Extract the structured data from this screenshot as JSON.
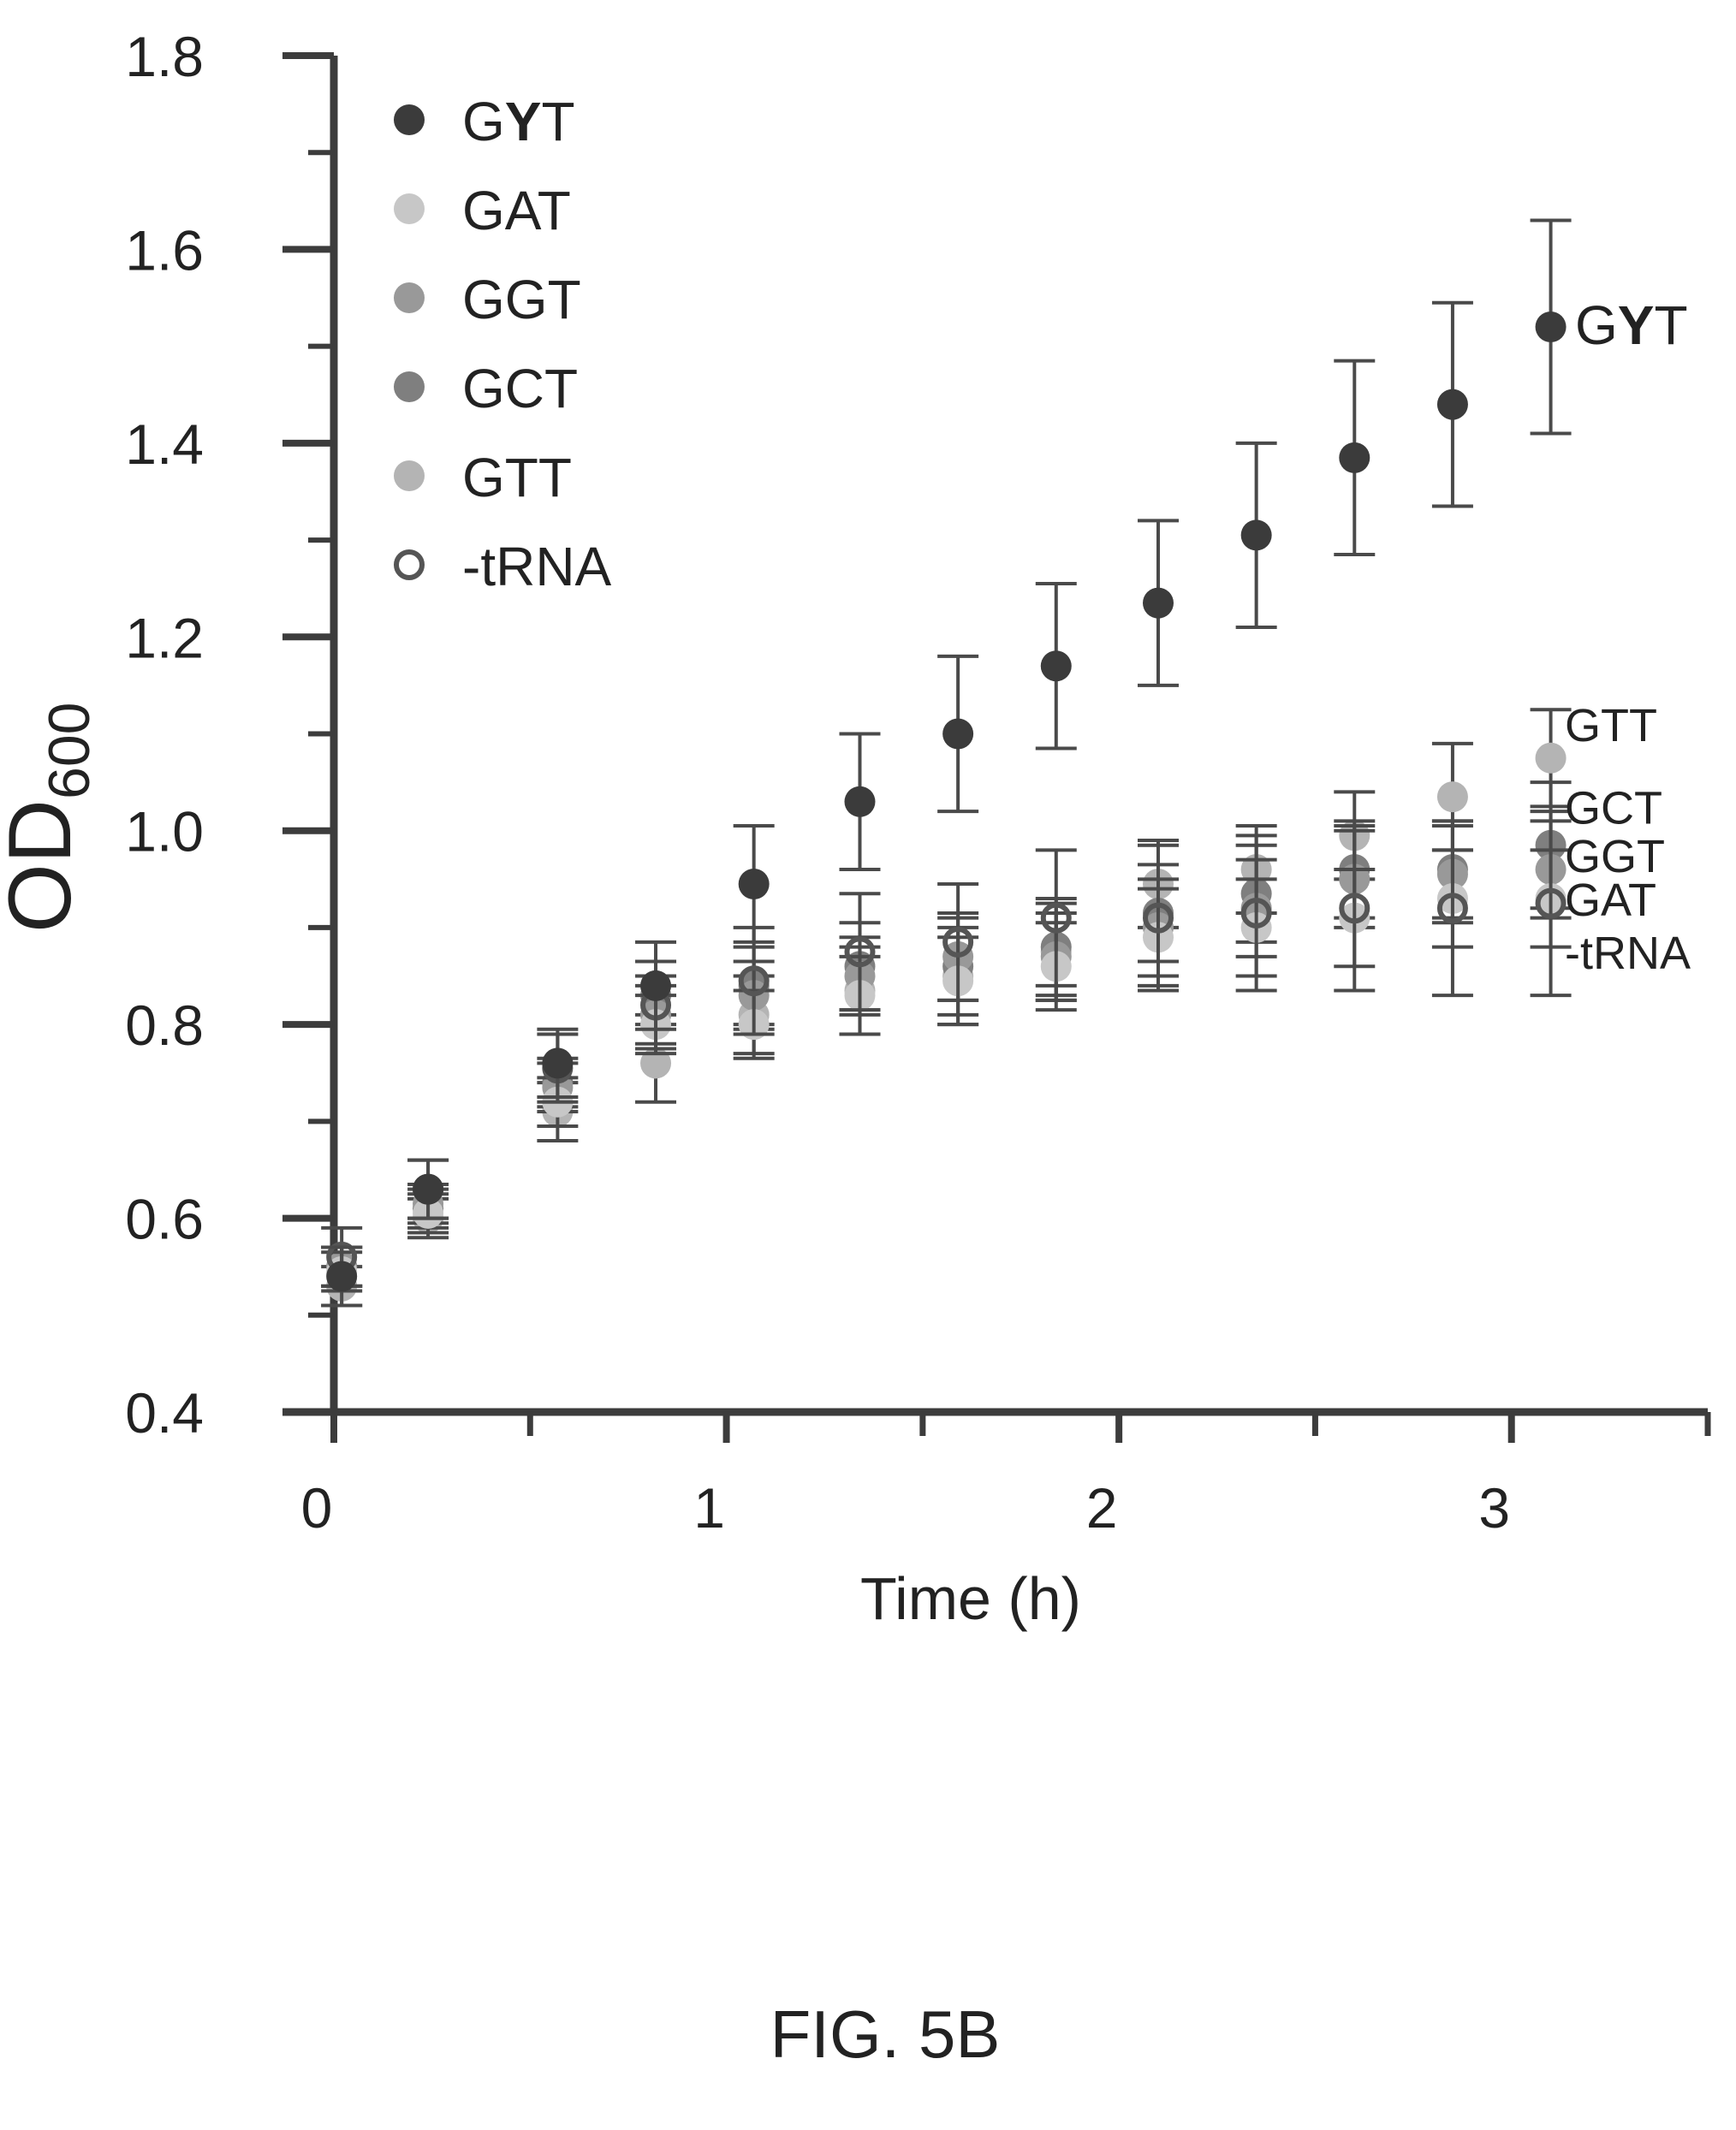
{
  "caption": "FIG. 5B",
  "chart_data": {
    "type": "scatter",
    "xlabel": "Time (h)",
    "ylabel": "OD",
    "ylabel_sub": "600",
    "xlim": [
      0,
      3.5
    ],
    "ylim": [
      0.4,
      1.8
    ],
    "x_ticks": [
      0,
      1,
      2,
      3
    ],
    "y_ticks": [
      "0.4",
      "0.6",
      "0.8",
      "1.0",
      "1.2",
      "1.4",
      "1.6",
      "1.8"
    ],
    "grid": false,
    "legend_position": "top-left",
    "error_bars": true,
    "legend": [
      {
        "pre": "G",
        "bold": "Y",
        "post": "T"
      },
      {
        "pre": "GAT",
        "bold": "",
        "post": ""
      },
      {
        "pre": "GGT",
        "bold": "",
        "post": ""
      },
      {
        "pre": "GCT",
        "bold": "",
        "post": ""
      },
      {
        "pre": "GTT",
        "bold": "",
        "post": ""
      },
      {
        "pre": "-tRNA",
        "bold": "",
        "post": ""
      }
    ],
    "series": [
      {
        "name": "GYT",
        "end_label": {
          "pre": "G",
          "bold": "Y",
          "post": "T"
        },
        "marker": "filled",
        "color": "#3b3b3b",
        "x": [
          0.02,
          0.24,
          0.57,
          0.82,
          1.07,
          1.34,
          1.59,
          1.84,
          2.1,
          2.35,
          2.6,
          2.85,
          3.1
        ],
        "y": [
          0.54,
          0.63,
          0.76,
          0.84,
          0.945,
          1.03,
          1.1,
          1.17,
          1.235,
          1.305,
          1.385,
          1.44,
          1.52
        ],
        "err": [
          0.03,
          0.03,
          0.035,
          0.045,
          0.06,
          0.07,
          0.08,
          0.085,
          0.085,
          0.095,
          0.1,
          0.105,
          0.11
        ]
      },
      {
        "name": "GTT",
        "end_label": {
          "pre": "GTT",
          "bold": "",
          "post": ""
        },
        "marker": "filled",
        "color": "#b4b4b4",
        "x": [
          0.02,
          0.24,
          0.57,
          0.82,
          1.07,
          1.34,
          1.59,
          1.84,
          2.1,
          2.35,
          2.6,
          2.85,
          3.1
        ],
        "y": [
          0.53,
          0.6,
          0.71,
          0.76,
          0.81,
          0.835,
          0.85,
          0.875,
          0.945,
          0.96,
          0.995,
          1.035,
          1.075
        ],
        "err": [
          0.02,
          0.02,
          0.03,
          0.04,
          0.04,
          0.045,
          0.05,
          0.05,
          0.045,
          0.045,
          0.045,
          0.055,
          0.05
        ]
      },
      {
        "name": "GCT",
        "end_label": {
          "pre": "GCT",
          "bold": "",
          "post": ""
        },
        "marker": "filled",
        "color": "#7f7f7f",
        "x": [
          0.02,
          0.24,
          0.57,
          0.82,
          1.07,
          1.34,
          1.59,
          1.84,
          2.1,
          2.35,
          2.6,
          2.85,
          3.1
        ],
        "y": [
          0.55,
          0.61,
          0.74,
          0.83,
          0.84,
          0.86,
          0.86,
          0.88,
          0.915,
          0.935,
          0.96,
          0.96,
          0.985
        ],
        "err": [
          0.02,
          0.02,
          0.025,
          0.02,
          0.04,
          0.045,
          0.05,
          0.05,
          0.05,
          0.05,
          0.05,
          0.05,
          0.065
        ]
      },
      {
        "name": "GGT",
        "end_label": {
          "pre": "GGT",
          "bold": "",
          "post": ""
        },
        "marker": "filled",
        "color": "#999999",
        "x": [
          0.02,
          0.24,
          0.57,
          0.82,
          1.07,
          1.34,
          1.59,
          1.84,
          2.1,
          2.35,
          2.6,
          2.85,
          3.1
        ],
        "y": [
          0.55,
          0.615,
          0.735,
          0.81,
          0.83,
          0.85,
          0.87,
          0.87,
          0.9,
          0.92,
          0.95,
          0.955,
          0.96
        ],
        "err": [
          0.02,
          0.02,
          0.025,
          0.03,
          0.035,
          0.04,
          0.045,
          0.045,
          0.05,
          0.05,
          0.05,
          0.05,
          0.05
        ]
      },
      {
        "name": "GAT",
        "end_label": {
          "pre": "GAT",
          "bold": "",
          "post": ""
        },
        "marker": "filled",
        "color": "#c7c7c7",
        "x": [
          0.02,
          0.24,
          0.57,
          0.82,
          1.07,
          1.34,
          1.59,
          1.84,
          2.1,
          2.35,
          2.6,
          2.85,
          3.1
        ],
        "y": [
          0.545,
          0.605,
          0.72,
          0.8,
          0.8,
          0.83,
          0.845,
          0.86,
          0.89,
          0.9,
          0.91,
          0.93,
          0.93
        ],
        "err": [
          0.02,
          0.02,
          0.025,
          0.03,
          0.035,
          0.04,
          0.045,
          0.045,
          0.05,
          0.05,
          0.05,
          0.05,
          0.05
        ]
      },
      {
        "name": "-tRNA",
        "end_label": {
          "pre": "-tRNA",
          "bold": "",
          "post": ""
        },
        "marker": "open",
        "color": "#555555",
        "x": [
          0.02,
          0.24,
          0.57,
          0.82,
          1.07,
          1.34,
          1.59,
          1.84,
          2.1,
          2.35,
          2.6,
          2.85,
          3.1
        ],
        "y": [
          0.56,
          0.63,
          0.755,
          0.82,
          0.845,
          0.875,
          0.885,
          0.91,
          0.91,
          0.915,
          0.92,
          0.92,
          0.925
        ],
        "err": [
          0.03,
          0.03,
          0.035,
          0.045,
          0.055,
          0.06,
          0.06,
          0.07,
          0.075,
          0.08,
          0.085,
          0.09,
          0.095
        ]
      }
    ]
  }
}
